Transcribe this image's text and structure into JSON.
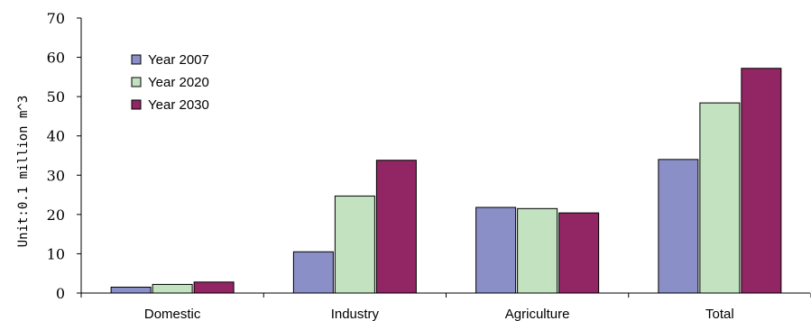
{
  "chart_data": {
    "type": "bar",
    "categories": [
      "Domestic",
      "Industry",
      "Agriculture",
      "Total"
    ],
    "series": [
      {
        "name": "Year 2007",
        "values": [
          1.5,
          10.5,
          21.8,
          34.0
        ],
        "color": "#8a8fc8"
      },
      {
        "name": "Year 2020",
        "values": [
          2.2,
          24.7,
          21.5,
          48.4
        ],
        "color": "#c2e2c0"
      },
      {
        "name": "Year 2030",
        "values": [
          2.8,
          33.8,
          20.4,
          57.2
        ],
        "color": "#922563"
      }
    ],
    "title": "",
    "xlabel": "",
    "ylabel": "Unit:0.1 million m^3",
    "ylim": [
      0,
      70
    ],
    "yticks": [
      0,
      10,
      20,
      30,
      40,
      50,
      60,
      70
    ],
    "grid": false,
    "legend": "top-left"
  }
}
